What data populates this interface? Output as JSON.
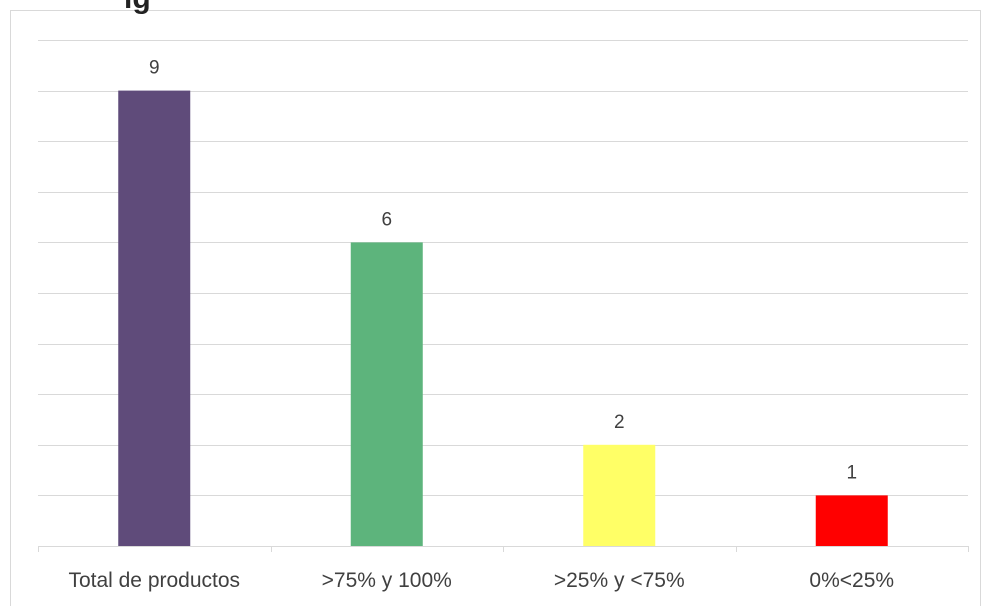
{
  "chart_data": {
    "type": "bar",
    "categories": [
      "Total de productos",
      ">75% y 100%",
      ">25% y <75%",
      "0%<25%"
    ],
    "values": [
      9,
      6,
      2,
      1
    ],
    "colors": [
      "#5F4B7A",
      "#5DB47C",
      "#FFFF66",
      "#FF0000"
    ],
    "title_fragment": "ig",
    "xlabel": "",
    "ylabel": "",
    "ylim": [
      0,
      10
    ],
    "grid": true,
    "legend": "none",
    "data_labels": true
  }
}
